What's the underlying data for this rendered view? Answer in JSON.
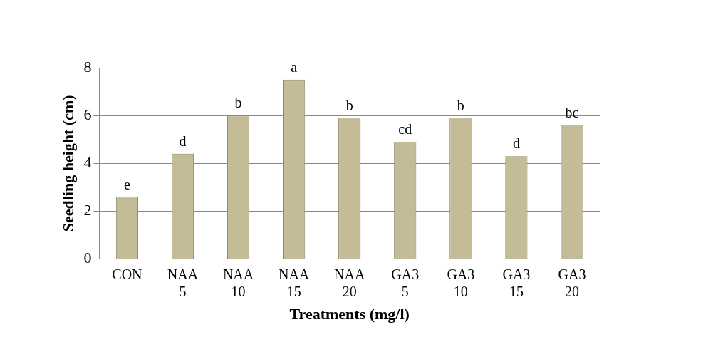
{
  "chart_data": {
    "type": "bar",
    "xlabel": "Treatments (mg/l)",
    "ylabel": "Seedling height (cm)",
    "categories": [
      "CON",
      "NAA 5",
      "NAA 10",
      "NAA 15",
      "NAA 20",
      "GA3 5",
      "GA3 10",
      "GA3 15",
      "GA3 20"
    ],
    "values": [
      2.6,
      4.4,
      6.0,
      7.5,
      5.9,
      4.9,
      5.9,
      4.3,
      5.6
    ],
    "color": "#c4bc96",
    "ylim": [
      0,
      8
    ],
    "yticks": [
      0,
      2,
      4,
      6,
      8
    ],
    "grid": "y",
    "legend": false,
    "annotations": [
      {
        "text": "e",
        "x": "CON",
        "y": 2.6
      },
      {
        "text": "d",
        "x": "NAA 5",
        "y": 4.4
      },
      {
        "text": "b",
        "x": "NAA 10",
        "y": 6.0
      },
      {
        "text": "a",
        "x": "NAA 15",
        "y": 7.5
      },
      {
        "text": "b",
        "x": "NAA 20",
        "y": 5.9
      },
      {
        "text": "cd",
        "x": "GA3 5",
        "y": 4.9
      },
      {
        "text": "b",
        "x": "GA3 10",
        "y": 5.9
      },
      {
        "text": "d",
        "x": "GA3 15",
        "y": 4.3
      },
      {
        "text": "bc",
        "x": "GA3 20",
        "y": 5.6
      }
    ]
  }
}
